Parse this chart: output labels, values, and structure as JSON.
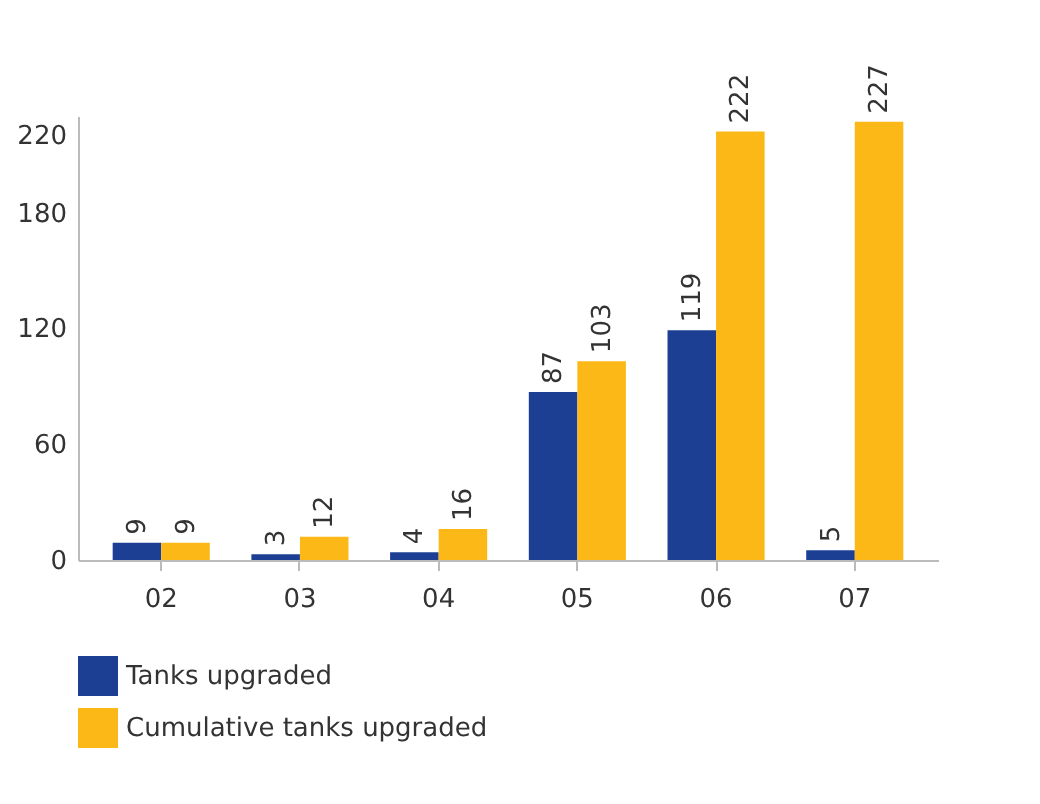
{
  "chart_data": {
    "type": "bar",
    "categories": [
      "02",
      "03",
      "04",
      "05",
      "06",
      "07"
    ],
    "series": [
      {
        "name": "Tanks upgraded",
        "color": "#1c3f94",
        "values": [
          9,
          3,
          4,
          87,
          119,
          5
        ]
      },
      {
        "name": "Cumulative tanks upgraded",
        "color": "#fbb817",
        "values": [
          9,
          12,
          16,
          103,
          222,
          227
        ]
      }
    ],
    "ylim": [
      0,
      230
    ],
    "yticks": [
      0,
      60,
      120,
      180,
      220
    ],
    "data_labels": true,
    "legend": "bottom left",
    "grid": false
  }
}
